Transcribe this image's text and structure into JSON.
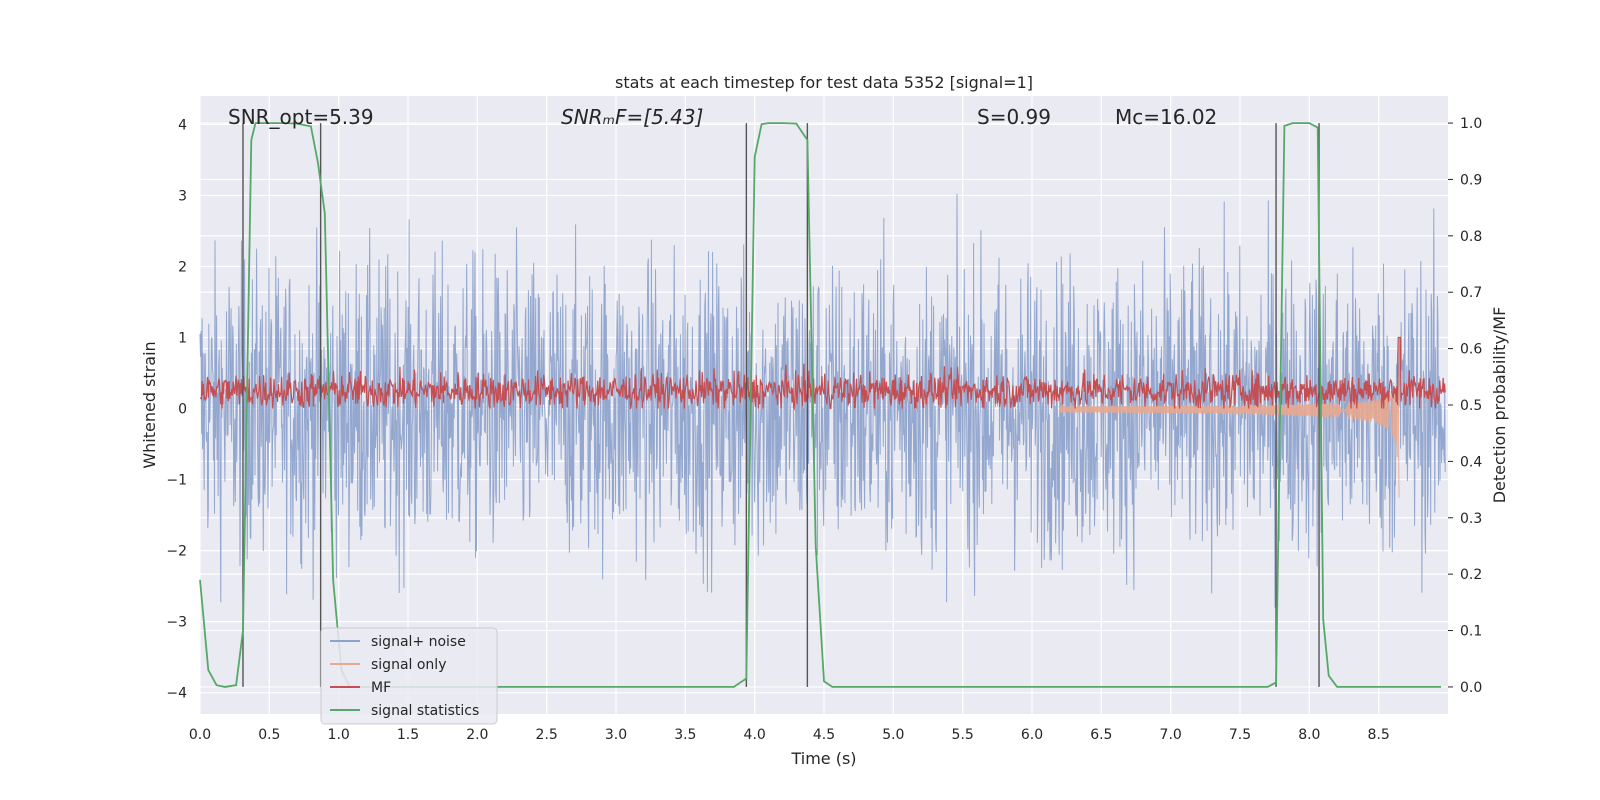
{
  "chart_data": {
    "type": "line",
    "title": "stats at each timestep for test data 5352 [signal=1]",
    "xlabel": "Time (s)",
    "ylabel": "Whitened strain",
    "y2label": "Detection probability/MF",
    "xlim": [
      0,
      9.0
    ],
    "ylim": [
      -4.3,
      4.4
    ],
    "y2lim": [
      -0.048,
      1.048
    ],
    "x_ticks": [
      0.0,
      0.5,
      1.0,
      1.5,
      2.0,
      2.5,
      3.0,
      3.5,
      4.0,
      4.5,
      5.0,
      5.5,
      6.0,
      6.5,
      7.0,
      7.5,
      8.0,
      8.5
    ],
    "x_tick_labels": [
      "0.0",
      "0.5",
      "1.0",
      "1.5",
      "2.0",
      "2.5",
      "3.0",
      "3.5",
      "4.0",
      "4.5",
      "5.0",
      "5.5",
      "6.0",
      "6.5",
      "7.0",
      "7.5",
      "8.0",
      "8.5"
    ],
    "y_ticks": [
      -4,
      -3,
      -2,
      -1,
      0,
      1,
      2,
      3,
      4
    ],
    "y_tick_labels": [
      "−4",
      "−3",
      "−2",
      "−1",
      "0",
      "1",
      "2",
      "3",
      "4"
    ],
    "y2_ticks": [
      0.0,
      0.1,
      0.2,
      0.3,
      0.4,
      0.5,
      0.6,
      0.7,
      0.8,
      0.9,
      1.0
    ],
    "y2_tick_labels": [
      "0.0",
      "0.1",
      "0.2",
      "0.3",
      "0.4",
      "0.5",
      "0.6",
      "0.7",
      "0.8",
      "0.9",
      "1.0"
    ],
    "grid": true,
    "legend_position": "lower-left",
    "annotations": [
      {
        "label": "snr-opt",
        "text": "SNR_opt=5.39"
      },
      {
        "label": "snr-mf",
        "text": "SNRₘF=[5.43]"
      },
      {
        "label": "s-value",
        "text": "S=0.99"
      },
      {
        "label": "chirp-mass",
        "text": "Mᴄ=16.02"
      }
    ],
    "series": [
      {
        "name": "signal+ noise",
        "color": "#8ea3cc",
        "kind": "noise",
        "axis": "left",
        "amplitude_range": [
          -4.0,
          4.0
        ]
      },
      {
        "name": "signal only",
        "color": "#e8a98f",
        "kind": "chirp",
        "axis": "left",
        "peak_time": 8.65,
        "peak_range": [
          -1.1,
          1.0
        ]
      },
      {
        "name": "MF",
        "color": "#c44e52",
        "kind": "noise",
        "axis": "left",
        "amplitude_range": [
          0.0,
          0.8
        ]
      },
      {
        "name": "signal statistics",
        "color": "#55a868",
        "kind": "line",
        "axis": "right",
        "x": [
          0.0,
          0.06,
          0.12,
          0.18,
          0.26,
          0.31,
          0.37,
          0.4,
          0.5,
          0.6,
          0.7,
          0.8,
          0.85,
          0.9,
          0.96,
          1.02,
          1.08,
          1.2,
          1.5,
          2.0,
          2.5,
          3.0,
          3.5,
          3.85,
          3.94,
          4.0,
          4.05,
          4.1,
          4.2,
          4.3,
          4.38,
          4.44,
          4.5,
          4.56,
          5.0,
          5.5,
          6.0,
          6.5,
          7.0,
          7.5,
          7.7,
          7.76,
          7.82,
          7.88,
          8.0,
          8.06,
          8.1,
          8.14,
          8.2,
          8.5,
          8.8,
          8.95
        ],
        "y": [
          0.19,
          0.03,
          0.003,
          0.0,
          0.003,
          0.1,
          0.97,
          1.0,
          1.0,
          1.0,
          0.999,
          0.994,
          0.93,
          0.84,
          0.19,
          0.03,
          0.0,
          0.0,
          0.0,
          0.0,
          0.0,
          0.0,
          0.0,
          0.0,
          0.015,
          0.94,
          0.998,
          1.0,
          1.0,
          0.999,
          0.97,
          0.25,
          0.01,
          0.0,
          0.0,
          0.0,
          0.0,
          0.0,
          0.0,
          0.0,
          0.0,
          0.008,
          0.995,
          1.0,
          1.0,
          0.992,
          0.12,
          0.02,
          0.0,
          0.0,
          0.0,
          0.0
        ]
      }
    ],
    "vertical_lines": [
      0.31,
      0.87,
      3.94,
      4.38,
      7.76,
      8.07
    ]
  }
}
